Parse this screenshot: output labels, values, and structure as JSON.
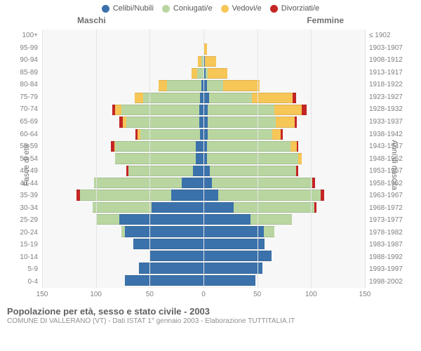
{
  "legend": [
    {
      "label": "Celibi/Nubili",
      "color": "#3b72ab"
    },
    {
      "label": "Coniugati/e",
      "color": "#b9d6a1"
    },
    {
      "label": "Vedovi/e",
      "color": "#f6c657"
    },
    {
      "label": "Divorziati/e",
      "color": "#c42525"
    }
  ],
  "headers": {
    "male": "Maschi",
    "female": "Femmine"
  },
  "axes": {
    "left_title": "Fasce di età",
    "right_title": "Anni di nascita",
    "x_max": 150,
    "x_ticks": [
      150,
      100,
      50,
      0,
      50,
      100,
      150
    ]
  },
  "colors": {
    "single": "#3b72ab",
    "married": "#b9d6a1",
    "widowed": "#f6c657",
    "divorced": "#c42525",
    "plot_bg": "#f7f7f7",
    "grid": "#e4e4e4"
  },
  "rows": [
    {
      "age": "100+",
      "birth": "≤ 1902",
      "m": {
        "s": 0,
        "c": 0,
        "w": 0,
        "d": 0
      },
      "f": {
        "s": 0,
        "c": 0,
        "w": 0,
        "d": 0
      }
    },
    {
      "age": "95-99",
      "birth": "1903-1907",
      "m": {
        "s": 0,
        "c": 0,
        "w": 0,
        "d": 0
      },
      "f": {
        "s": 0,
        "c": 0,
        "w": 3,
        "d": 0
      }
    },
    {
      "age": "90-94",
      "birth": "1908-1912",
      "m": {
        "s": 0,
        "c": 2,
        "w": 3,
        "d": 0
      },
      "f": {
        "s": 1,
        "c": 0,
        "w": 11,
        "d": 0
      }
    },
    {
      "age": "85-89",
      "birth": "1913-1917",
      "m": {
        "s": 0,
        "c": 6,
        "w": 5,
        "d": 0
      },
      "f": {
        "s": 2,
        "c": 2,
        "w": 18,
        "d": 0
      }
    },
    {
      "age": "80-84",
      "birth": "1918-1922",
      "m": {
        "s": 2,
        "c": 32,
        "w": 8,
        "d": 0
      },
      "f": {
        "s": 3,
        "c": 15,
        "w": 34,
        "d": 0
      }
    },
    {
      "age": "75-79",
      "birth": "1923-1927",
      "m": {
        "s": 3,
        "c": 53,
        "w": 8,
        "d": 0
      },
      "f": {
        "s": 5,
        "c": 40,
        "w": 38,
        "d": 3
      }
    },
    {
      "age": "70-74",
      "birth": "1928-1932",
      "m": {
        "s": 4,
        "c": 72,
        "w": 6,
        "d": 3
      },
      "f": {
        "s": 4,
        "c": 62,
        "w": 25,
        "d": 5
      }
    },
    {
      "age": "65-69",
      "birth": "1933-1937",
      "m": {
        "s": 4,
        "c": 68,
        "w": 3,
        "d": 3
      },
      "f": {
        "s": 4,
        "c": 63,
        "w": 18,
        "d": 2
      }
    },
    {
      "age": "60-64",
      "birth": "1938-1942",
      "m": {
        "s": 3,
        "c": 56,
        "w": 2,
        "d": 2
      },
      "f": {
        "s": 4,
        "c": 60,
        "w": 8,
        "d": 2
      }
    },
    {
      "age": "55-59",
      "birth": "1943-1947",
      "m": {
        "s": 7,
        "c": 75,
        "w": 1,
        "d": 3
      },
      "f": {
        "s": 3,
        "c": 78,
        "w": 6,
        "d": 1
      }
    },
    {
      "age": "50-54",
      "birth": "1948-1952",
      "m": {
        "s": 7,
        "c": 75,
        "w": 0,
        "d": 0
      },
      "f": {
        "s": 3,
        "c": 85,
        "w": 3,
        "d": 0
      }
    },
    {
      "age": "45-49",
      "birth": "1953-1957",
      "m": {
        "s": 10,
        "c": 60,
        "w": 0,
        "d": 2
      },
      "f": {
        "s": 6,
        "c": 80,
        "w": 0,
        "d": 2
      }
    },
    {
      "age": "40-44",
      "birth": "1958-1962",
      "m": {
        "s": 20,
        "c": 82,
        "w": 0,
        "d": 0
      },
      "f": {
        "s": 8,
        "c": 93,
        "w": 0,
        "d": 3
      }
    },
    {
      "age": "35-39",
      "birth": "1963-1967",
      "m": {
        "s": 30,
        "c": 85,
        "w": 0,
        "d": 3
      },
      "f": {
        "s": 14,
        "c": 95,
        "w": 0,
        "d": 3
      }
    },
    {
      "age": "30-34",
      "birth": "1968-1972",
      "m": {
        "s": 48,
        "c": 55,
        "w": 0,
        "d": 0
      },
      "f": {
        "s": 28,
        "c": 75,
        "w": 0,
        "d": 2
      }
    },
    {
      "age": "25-29",
      "birth": "1973-1977",
      "m": {
        "s": 78,
        "c": 22,
        "w": 0,
        "d": 0
      },
      "f": {
        "s": 44,
        "c": 38,
        "w": 0,
        "d": 0
      }
    },
    {
      "age": "20-24",
      "birth": "1978-1982",
      "m": {
        "s": 73,
        "c": 3,
        "w": 0,
        "d": 0
      },
      "f": {
        "s": 56,
        "c": 10,
        "w": 0,
        "d": 0
      }
    },
    {
      "age": "15-19",
      "birth": "1983-1987",
      "m": {
        "s": 65,
        "c": 0,
        "w": 0,
        "d": 0
      },
      "f": {
        "s": 57,
        "c": 0,
        "w": 0,
        "d": 0
      }
    },
    {
      "age": "10-14",
      "birth": "1988-1992",
      "m": {
        "s": 50,
        "c": 0,
        "w": 0,
        "d": 0
      },
      "f": {
        "s": 63,
        "c": 0,
        "w": 0,
        "d": 0
      }
    },
    {
      "age": "5-9",
      "birth": "1993-1997",
      "m": {
        "s": 60,
        "c": 0,
        "w": 0,
        "d": 0
      },
      "f": {
        "s": 55,
        "c": 0,
        "w": 0,
        "d": 0
      }
    },
    {
      "age": "0-4",
      "birth": "1998-2002",
      "m": {
        "s": 73,
        "c": 0,
        "w": 0,
        "d": 0
      },
      "f": {
        "s": 48,
        "c": 0,
        "w": 0,
        "d": 0
      }
    }
  ],
  "footer": {
    "title": "Popolazione per età, sesso e stato civile - 2003",
    "subtitle": "COMUNE DI VALLERANO (VT) - Dati ISTAT 1° gennaio 2003 - Elaborazione TUTTITALIA.IT"
  }
}
